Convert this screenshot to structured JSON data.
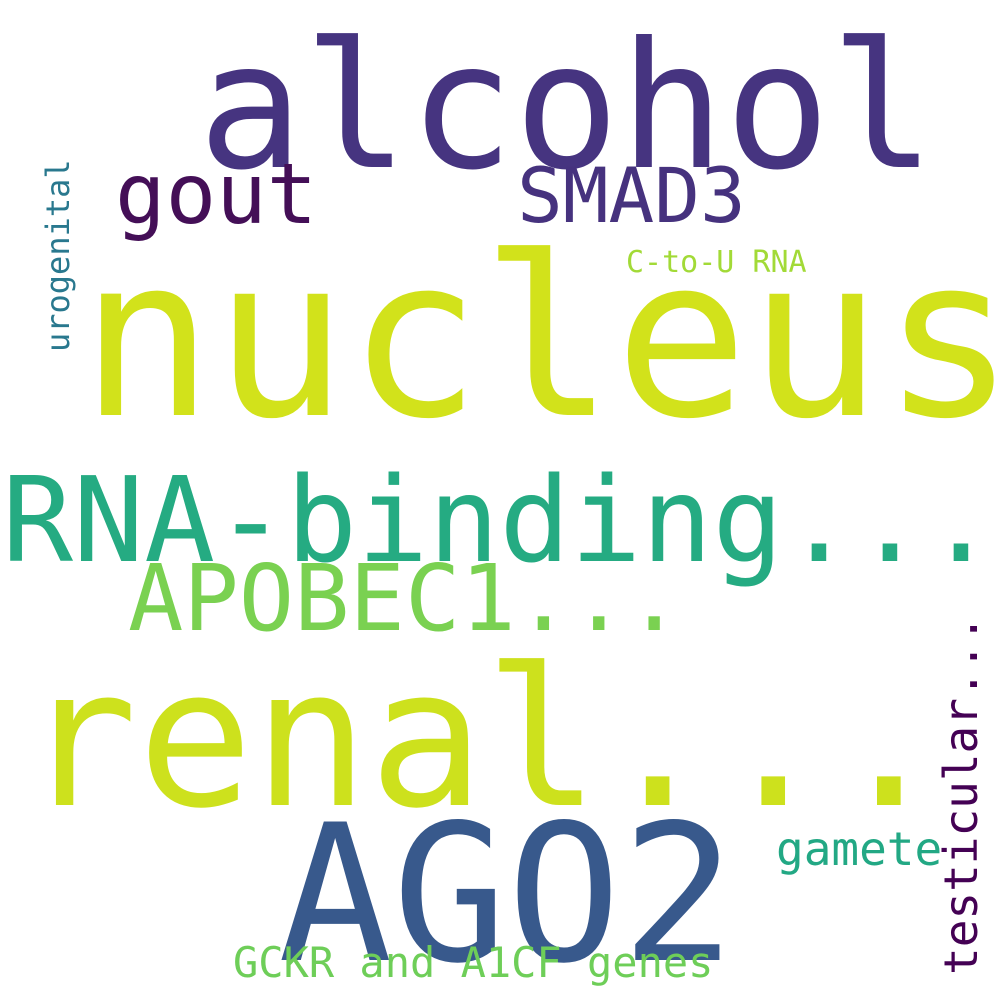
{
  "words": {
    "alcohol": {
      "text": "alcohol",
      "color": "#463480"
    },
    "gout": {
      "text": "gout",
      "color": "#440f57"
    },
    "smad3": {
      "text": "SMAD3",
      "color": "#46327e"
    },
    "c_to_u_rna": {
      "text": "C-to-U RNA",
      "color": "#a2da37"
    },
    "nucleus": {
      "text": "nucleus",
      "color": "#d2e21b"
    },
    "rna_binding": {
      "text": "RNA-binding...",
      "color": "#25ab82"
    },
    "apobec1": {
      "text": "APOBEC1...",
      "color": "#7ad151"
    },
    "renal": {
      "text": "renal...",
      "color": "#cde11d"
    },
    "ago2": {
      "text": "AGO2",
      "color": "#38598c"
    },
    "gamete": {
      "text": "gamete",
      "color": "#22a884"
    },
    "gckr": {
      "text": "GCKR and A1CF genes",
      "color": "#6ece58"
    },
    "urogenital": {
      "text": "urogenital",
      "color": "#29788e"
    },
    "testicular": {
      "text": "testicular...",
      "color": "#440154"
    }
  }
}
